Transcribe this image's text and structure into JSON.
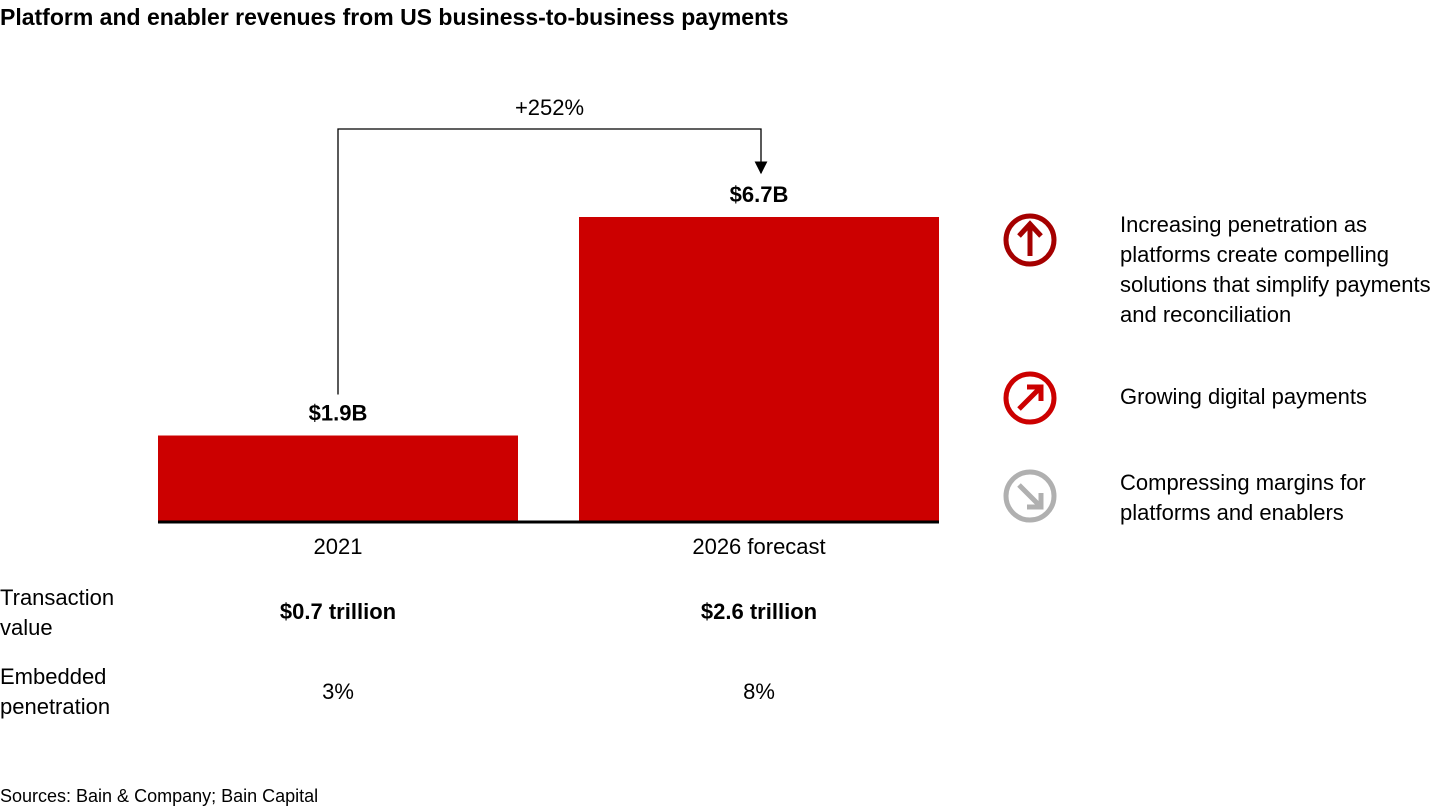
{
  "chart_data": {
    "type": "bar",
    "title": "Platform and enabler revenues from US business-to-business payments",
    "categories": [
      "2021",
      "2026 forecast"
    ],
    "values": [
      1.9,
      6.7
    ],
    "value_labels": [
      "$1.9B",
      "$6.7B"
    ],
    "color": "#cc0000",
    "annotation": "+252%",
    "table": {
      "rows": [
        {
          "label": "Transaction value",
          "values": [
            "$0.7 trillion",
            "$2.6 trillion"
          ]
        },
        {
          "label": "Embedded penetration",
          "values": [
            "3%",
            "8%"
          ]
        }
      ]
    },
    "drivers": [
      "Increasing penetration as platforms create compelling solutions that simplify payments and reconciliation",
      "Growing digital payments",
      "Compressing margins for platforms and enablers"
    ],
    "source": "Sources: Bain & Company; Bain Capital"
  }
}
